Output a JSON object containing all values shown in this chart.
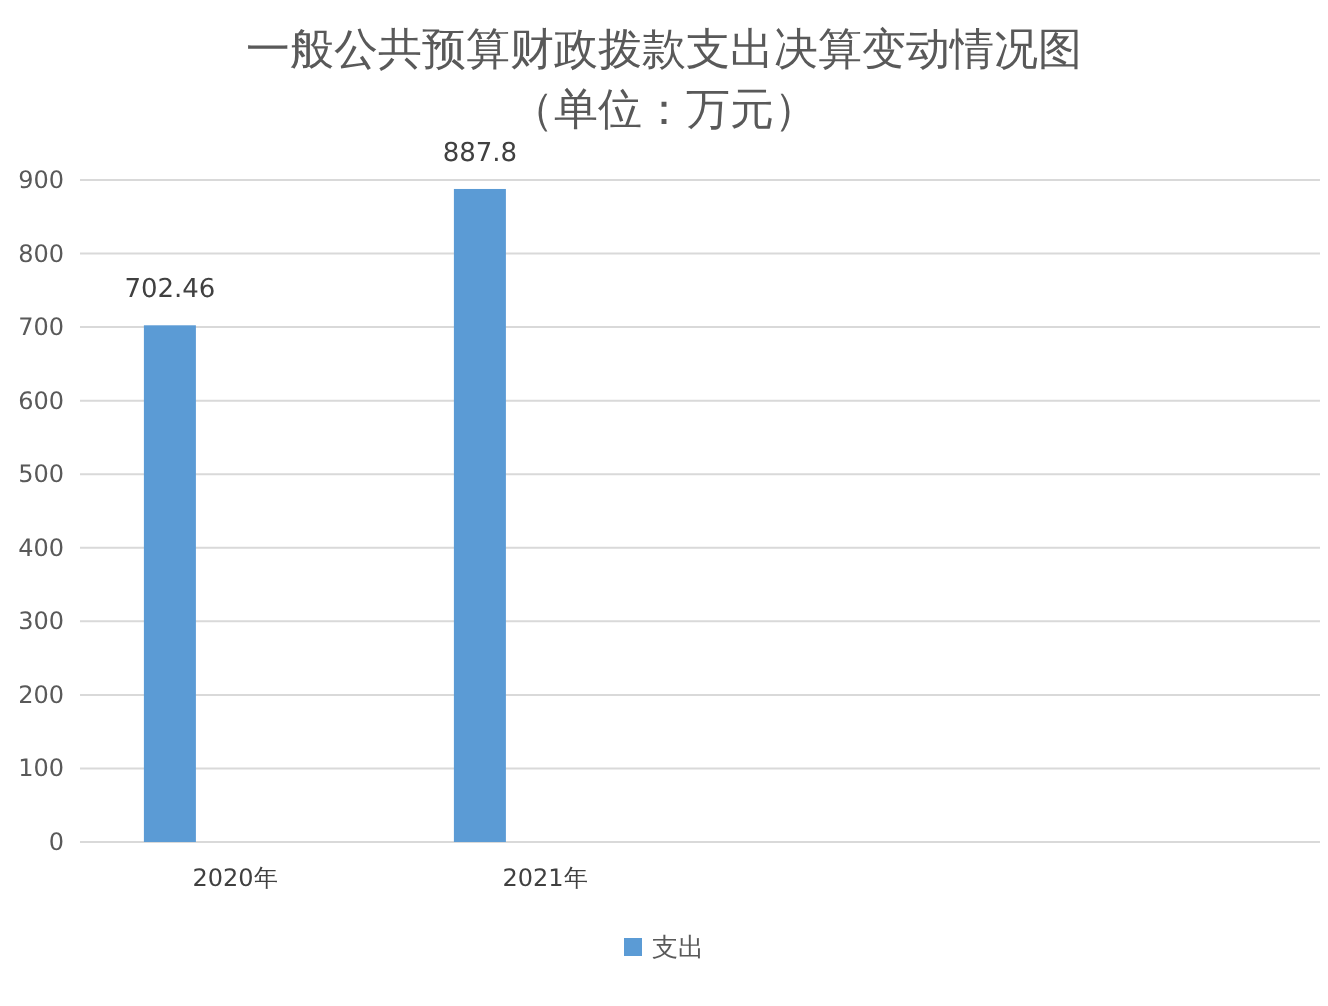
{
  "chart_data": {
    "type": "bar",
    "title": "一般公共预算财政拨款支出决算变动情况图",
    "subtitle": "（单位：万元）",
    "categories": [
      "2020年",
      "2021年",
      null,
      null
    ],
    "series": [
      {
        "name": "支出",
        "color": "#5b9bd5",
        "values": [
          702.46,
          887.8,
          null,
          null
        ]
      }
    ],
    "ylim": [
      0,
      900
    ],
    "yticks": [
      0,
      100,
      200,
      300,
      400,
      500,
      600,
      700,
      800,
      900
    ],
    "grid": "y",
    "legend": "bottom",
    "data_labels": true
  }
}
